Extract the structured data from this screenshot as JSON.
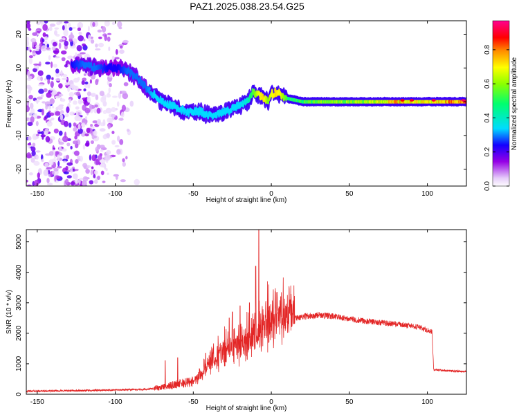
{
  "title": "PAZ1.2025.038.23.54.G25",
  "chart_data": [
    {
      "type": "heatmap",
      "xlabel": "Height of straight line (km)",
      "ylabel": "Frequency (Hz)",
      "xlim": [
        -157,
        125
      ],
      "ylim": [
        -25,
        24
      ],
      "x_ticks": [
        -150,
        -100,
        -50,
        0,
        50,
        100
      ],
      "y_ticks": [
        -20,
        -10,
        0,
        10,
        20
      ],
      "x_tick_labels": [
        "-150",
        "-100",
        "-50",
        "0",
        "50",
        "100"
      ],
      "y_tick_labels": [
        "-20",
        "-10",
        "0",
        "10",
        "20"
      ],
      "colorbar": {
        "label": "Normalized spectral amplitude",
        "range": [
          0,
          0.97
        ],
        "ticks": [
          0,
          0.2,
          0.4,
          0.6,
          0.8
        ],
        "tick_labels": [
          "0.0",
          "0.2",
          "0.4",
          "0.6",
          "0.8"
        ],
        "colormap": "rainbow"
      },
      "ridge": {
        "x": [
          -128,
          -120,
          -112,
          -105,
          -98,
          -92,
          -86,
          -80,
          -75,
          -70,
          -65,
          -60,
          -55,
          -50,
          -45,
          -40,
          -35,
          -30,
          -25,
          -20,
          -15,
          -12,
          -8,
          -5,
          -2,
          0,
          3,
          6,
          10,
          20,
          40,
          60,
          80,
          100,
          125
        ],
        "y": [
          11,
          11,
          10,
          10,
          10,
          9,
          7,
          4,
          2,
          0,
          -1,
          -2,
          -3,
          -3,
          -3,
          -4,
          -4,
          -3,
          -2,
          -1,
          0,
          3,
          2,
          1,
          0,
          2,
          3,
          2,
          1,
          0,
          0,
          0,
          0,
          0,
          0
        ],
        "amplitude": [
          0.25,
          0.3,
          0.3,
          0.25,
          0.25,
          0.3,
          0.3,
          0.3,
          0.35,
          0.35,
          0.35,
          0.35,
          0.35,
          0.35,
          0.35,
          0.35,
          0.35,
          0.35,
          0.35,
          0.35,
          0.4,
          0.55,
          0.7,
          0.75,
          0.6,
          0.7,
          0.75,
          0.7,
          0.55,
          0.6,
          0.7,
          0.7,
          0.85,
          0.8,
          0.97
        ]
      },
      "noise_region_x": [
        -157,
        -85
      ]
    },
    {
      "type": "line",
      "xlabel": "Height of straight line (km)",
      "ylabel": "SNR (10 * v/v)",
      "xlim": [
        -157,
        125
      ],
      "ylim": [
        0,
        5400
      ],
      "x_ticks": [
        -150,
        -100,
        -50,
        0,
        50,
        100
      ],
      "y_ticks": [
        0,
        1000,
        2000,
        3000,
        4000,
        5000
      ],
      "x_tick_labels": [
        "-150",
        "-100",
        "-50",
        "0",
        "50",
        "100"
      ],
      "y_tick_labels": [
        "0",
        "1000",
        "2000",
        "3000",
        "4000",
        "5000"
      ],
      "series_color": "#e32626",
      "envelope": {
        "x": [
          -157,
          -120,
          -100,
          -80,
          -70,
          -60,
          -50,
          -45,
          -40,
          -30,
          -20,
          -12,
          -8,
          -5,
          0,
          10,
          20,
          30,
          40,
          60,
          80,
          95,
          103,
          104,
          110,
          125
        ],
        "y": [
          100,
          120,
          140,
          160,
          220,
          320,
          400,
          600,
          900,
          1300,
          1500,
          1700,
          1900,
          2000,
          2200,
          2400,
          2550,
          2600,
          2550,
          2400,
          2300,
          2200,
          2050,
          800,
          780,
          740
        ]
      },
      "spikes": {
        "x": [
          -8,
          -10,
          -14,
          -20,
          -25,
          -27,
          6,
          12,
          -60,
          -68
        ],
        "y": [
          5400,
          4200,
          3000,
          2900,
          2700,
          2500,
          3200,
          3100,
          1200,
          1100
        ]
      }
    }
  ]
}
